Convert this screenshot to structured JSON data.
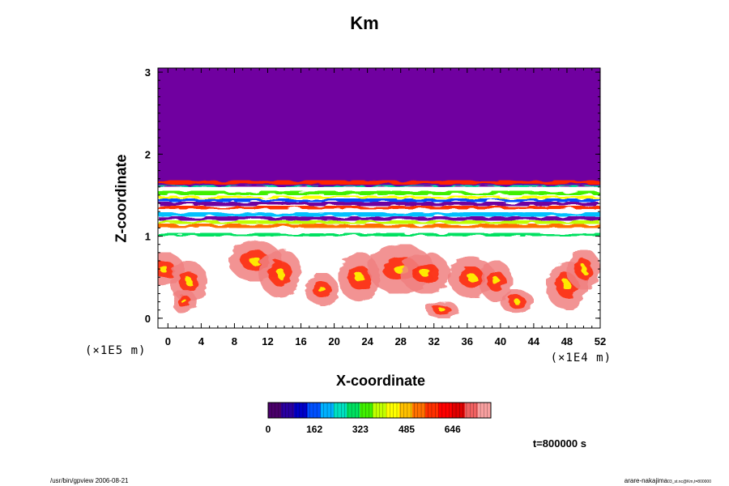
{
  "chart_data": {
    "type": "heatmap",
    "title": "Km",
    "xlabel": "X-coordinate",
    "ylabel": "Z-coordinate",
    "x_scale_note": "(×1E4 m)",
    "z_scale_note": "(×1E5 m)",
    "xlim": [
      -1.2,
      52
    ],
    "ylim": [
      -0.12,
      3.05
    ],
    "x_ticks": [
      "0",
      "4",
      "8",
      "12",
      "16",
      "20",
      "24",
      "28",
      "32",
      "36",
      "40",
      "44",
      "48",
      "52"
    ],
    "y_ticks": [
      "0",
      "1",
      "2",
      "3"
    ],
    "colorbar": {
      "ticks": [
        "0",
        "162",
        "323",
        "485",
        "646"
      ],
      "tick_values": [
        0,
        162,
        323,
        485,
        646
      ],
      "max": 780,
      "colors": [
        "#4a006a",
        "#2a00a0",
        "#0000c8",
        "#0050ff",
        "#00b0ff",
        "#00e0c0",
        "#00e060",
        "#40f000",
        "#c0ff00",
        "#ffff00",
        "#ffc000",
        "#ff7000",
        "#ff3000",
        "#ff0000",
        "#e00000",
        "#f06060",
        "#f8a0a0"
      ]
    },
    "background_color": "#7000a0",
    "time_label": "t=800000 s"
  },
  "footer": {
    "left": "/usr/bin/gpview 2006-08-21",
    "right_main": "arare-nakajima",
    "right_small": "03_st.nc@Km,t=800000"
  }
}
